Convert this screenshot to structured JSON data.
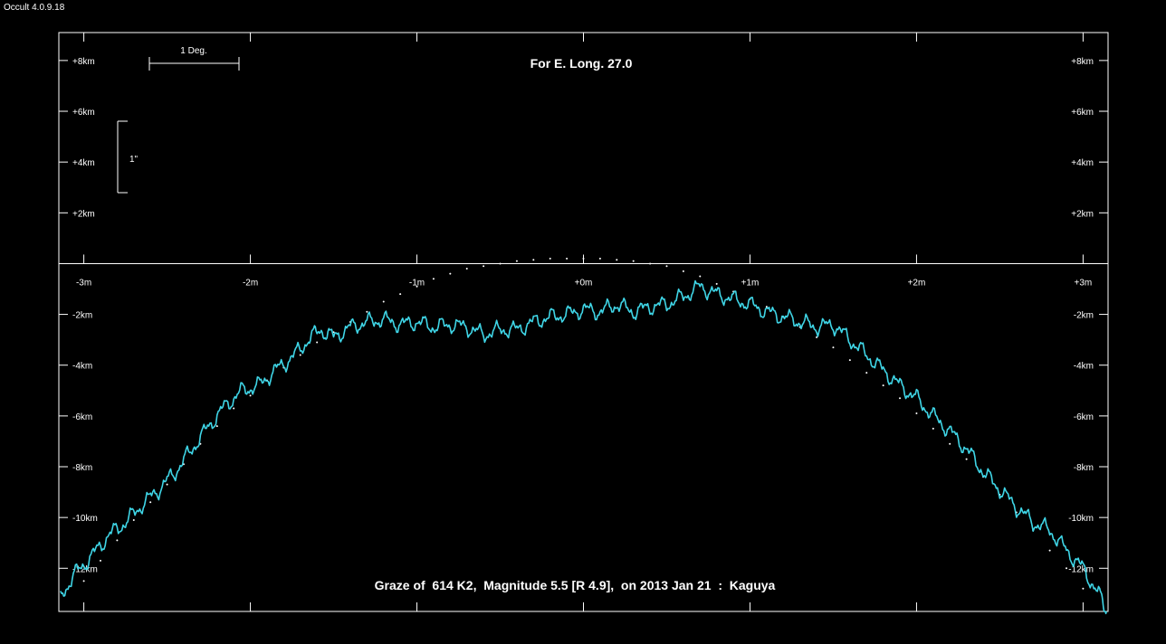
{
  "app_version": "Occult 4.0.9.18",
  "chart_data": {
    "type": "line",
    "title": "For E. Long. 27.0",
    "caption": "Graze of  614 K2,  Magnitude 5.5 [R 4.9],  on 2013 Jan 21  :  Kaguya",
    "scale_labels": {
      "degree": "1 Deg.",
      "arcsec": "1\""
    },
    "x_ticks": [
      {
        "value": -3,
        "label": "-3m"
      },
      {
        "value": -2,
        "label": "-2m"
      },
      {
        "value": -1,
        "label": "-1m"
      },
      {
        "value": 0,
        "label": "+0m"
      },
      {
        "value": 1,
        "label": "+1m"
      },
      {
        "value": 2,
        "label": "+2m"
      },
      {
        "value": 3,
        "label": "+3m"
      }
    ],
    "y_ticks": [
      {
        "value": 8,
        "label": "+8km"
      },
      {
        "value": 6,
        "label": "+6km"
      },
      {
        "value": 4,
        "label": "+4km"
      },
      {
        "value": 2,
        "label": "+2km"
      },
      {
        "value": -2,
        "label": "-2km"
      },
      {
        "value": -4,
        "label": "-4km"
      },
      {
        "value": -6,
        "label": "-6km"
      },
      {
        "value": -8,
        "label": "-8km"
      },
      {
        "value": -10,
        "label": "-10km"
      },
      {
        "value": -12,
        "label": "-12km"
      }
    ],
    "xlim": [
      -3.15,
      3.15
    ],
    "ylim": [
      -13.7,
      9.1
    ],
    "colors": {
      "profile": "#3fd5e6",
      "mean_limb": "#ffffff",
      "axis": "#ffffff"
    },
    "series": [
      {
        "key": "limb_profile",
        "x": [
          -3.14,
          -3.05,
          -2.95,
          -2.85,
          -2.75,
          -2.65,
          -2.55,
          -2.45,
          -2.35,
          -2.25,
          -2.15,
          -2.05,
          -1.95,
          -1.85,
          -1.75,
          -1.65,
          -1.58,
          -1.5,
          -1.4,
          -1.3,
          -1.2,
          -1.1,
          -1.0,
          -0.9,
          -0.8,
          -0.7,
          -0.6,
          -0.5,
          -0.4,
          -0.3,
          -0.2,
          -0.1,
          0.0,
          0.1,
          0.2,
          0.3,
          0.4,
          0.5,
          0.6,
          0.7,
          0.8,
          0.9,
          1.0,
          1.1,
          1.2,
          1.3,
          1.4,
          1.5,
          1.6,
          1.7,
          1.8,
          1.9,
          2.0,
          2.1,
          2.2,
          2.3,
          2.4,
          2.5,
          2.6,
          2.7,
          2.8,
          2.9,
          3.0,
          3.1,
          3.14
        ],
        "y": [
          -13.1,
          -12.2,
          -11.5,
          -10.7,
          -10.2,
          -9.5,
          -8.9,
          -8.2,
          -7.3,
          -6.4,
          -5.6,
          -5.0,
          -4.8,
          -4.2,
          -3.7,
          -3.0,
          -2.6,
          -2.9,
          -2.5,
          -2.3,
          -2.2,
          -2.4,
          -2.3,
          -2.5,
          -2.4,
          -2.5,
          -2.8,
          -2.6,
          -2.6,
          -2.3,
          -2.1,
          -2.0,
          -1.8,
          -1.9,
          -1.6,
          -1.9,
          -1.7,
          -1.6,
          -1.3,
          -0.9,
          -1.2,
          -1.4,
          -1.6,
          -1.9,
          -2.1,
          -2.3,
          -2.5,
          -2.4,
          -3.0,
          -3.6,
          -4.2,
          -4.8,
          -5.3,
          -6.0,
          -6.6,
          -7.3,
          -8.2,
          -8.9,
          -9.6,
          -10.2,
          -10.5,
          -11.3,
          -12.0,
          -13.1,
          -13.7
        ]
      },
      {
        "key": "mean_limb",
        "x": [
          -3.0,
          -2.9,
          -2.8,
          -2.7,
          -2.6,
          -2.5,
          -2.4,
          -2.3,
          -2.2,
          -2.1,
          -2.0,
          -1.9,
          -1.8,
          -1.7,
          -1.6,
          -1.5,
          -1.4,
          -1.3,
          -1.2,
          -1.1,
          -1.0,
          -0.9,
          -0.8,
          -0.7,
          -0.6,
          -0.5,
          -0.4,
          -0.3,
          -0.2,
          -0.1,
          0.0,
          0.1,
          0.2,
          0.3,
          0.4,
          0.5,
          0.6,
          0.7,
          0.8,
          0.9,
          1.0,
          1.1,
          1.2,
          1.3,
          1.4,
          1.5,
          1.6,
          1.7,
          1.8,
          1.9,
          2.0,
          2.1,
          2.2,
          2.3,
          2.4,
          2.5,
          2.6,
          2.7,
          2.8,
          2.9,
          3.0
        ],
        "y": [
          -12.5,
          -11.7,
          -10.9,
          -10.1,
          -9.4,
          -8.7,
          -7.9,
          -7.1,
          -6.4,
          -5.7,
          -5.2,
          -4.6,
          -4.1,
          -3.6,
          -3.1,
          -2.7,
          -2.3,
          -1.9,
          -1.5,
          -1.2,
          -0.9,
          -0.6,
          -0.4,
          -0.2,
          -0.1,
          0.0,
          0.1,
          0.15,
          0.2,
          0.2,
          0.2,
          0.2,
          0.15,
          0.1,
          0.0,
          -0.1,
          -0.3,
          -0.5,
          -0.8,
          -1.1,
          -1.4,
          -1.7,
          -2.1,
          -2.5,
          -2.9,
          -3.3,
          -3.8,
          -4.3,
          -4.8,
          -5.3,
          -5.9,
          -6.5,
          -7.1,
          -7.7,
          -8.4,
          -9.1,
          -9.8,
          -10.5,
          -11.3,
          -12.0,
          -12.8
        ]
      }
    ]
  }
}
